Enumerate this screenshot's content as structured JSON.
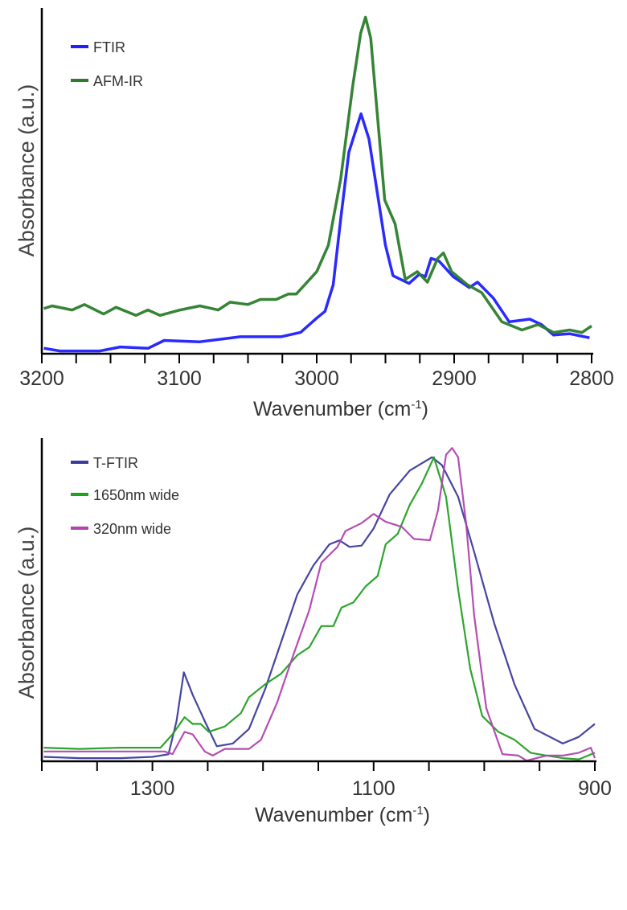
{
  "chart_data": [
    {
      "type": "line",
      "xlabel": "Wavenumber (cm-1)",
      "ylabel": "Absorbance (a.u.)",
      "xlim": [
        3200,
        2800
      ],
      "x_reversed": true,
      "ylim": [
        0,
        1
      ],
      "x_ticks": [
        3200,
        3100,
        3000,
        2900,
        2800
      ],
      "x_minor_step": 25,
      "y_ticks": [],
      "grid": false,
      "legend": "top-left",
      "series": [
        {
          "name": "FTIR",
          "color": "#1f1fff",
          "x": [
            3198.5,
            3186.9,
            3157.7,
            3143,
            3122.6,
            3111,
            3085,
            3055.5,
            3026,
            3011.7,
            3000,
            2994,
            2988,
            2982.5,
            2976.6,
            2967.8,
            2962,
            2956,
            2950,
            2944.5,
            2932.8,
            2925.5,
            2921,
            2916.8,
            2911,
            2900.7,
            2889,
            2883,
            2871.5,
            2860,
            2845,
            2836.5,
            2827.7,
            2816,
            2801.5
          ],
          "y": [
            0.016,
            0.008,
            0.008,
            0.02,
            0.016,
            0.039,
            0.035,
            0.05,
            0.05,
            0.063,
            0.105,
            0.125,
            0.203,
            0.398,
            0.594,
            0.707,
            0.633,
            0.477,
            0.32,
            0.23,
            0.207,
            0.234,
            0.227,
            0.281,
            0.273,
            0.227,
            0.195,
            0.211,
            0.164,
            0.094,
            0.102,
            0.086,
            0.055,
            0.059,
            0.047
          ]
        },
        {
          "name": "AFM-IR",
          "color": "#2b7d2b",
          "x": [
            3198.5,
            3192.6,
            3178,
            3169,
            3155,
            3146,
            3131.6,
            3122.8,
            3114,
            3099.4,
            3085,
            3071.7,
            3063,
            3050,
            3041,
            3029.5,
            3020.6,
            3014.8,
            3000,
            2991.5,
            2982.5,
            2973.8,
            2968,
            2964.5,
            2960.7,
            2956,
            2950.5,
            2943,
            2935.6,
            2926.8,
            2919.5,
            2912,
            2907.8,
            2901.9,
            2890.3,
            2880,
            2865.3,
            2850.7,
            2839,
            2827.7,
            2816,
            2807,
            2800
          ],
          "y": [
            0.133,
            0.141,
            0.129,
            0.145,
            0.117,
            0.137,
            0.113,
            0.129,
            0.113,
            0.129,
            0.141,
            0.129,
            0.152,
            0.145,
            0.16,
            0.16,
            0.176,
            0.176,
            0.242,
            0.32,
            0.516,
            0.789,
            0.945,
            0.992,
            0.93,
            0.711,
            0.453,
            0.383,
            0.219,
            0.242,
            0.211,
            0.281,
            0.297,
            0.242,
            0.203,
            0.18,
            0.094,
            0.07,
            0.086,
            0.0625,
            0.07,
            0.0625,
            0.082
          ]
        }
      ]
    },
    {
      "type": "line",
      "xlabel": "Wavenumber (cm-1)",
      "ylabel": "Absorbance (a.u.)",
      "xlim": [
        1400,
        900
      ],
      "x_reversed": true,
      "ylim": [
        0,
        1
      ],
      "x_ticks": [
        1300,
        1100,
        900
      ],
      "x_minor_step": 50,
      "y_ticks": [],
      "grid": false,
      "legend": "top-left",
      "series": [
        {
          "name": "T-FTIR",
          "color": "#3b3b9c",
          "x": [
            1398.2,
            1365.5,
            1329,
            1300,
            1285.5,
            1278.2,
            1271.6,
            1263.6,
            1252.7,
            1241.8,
            1227.3,
            1212.7,
            1198.2,
            1183.6,
            1169,
            1154.5,
            1140,
            1130.9,
            1121.8,
            1110.9,
            1100,
            1085.5,
            1067.3,
            1047.3,
            1038.2,
            1023.6,
            1009,
            990.9,
            972.7,
            954.5,
            929,
            914.5,
            900
          ],
          "y": [
            0.014,
            0.01,
            0.01,
            0.014,
            0.022,
            0.127,
            0.281,
            0.21,
            0.127,
            0.0475,
            0.056,
            0.102,
            0.227,
            0.377,
            0.527,
            0.618,
            0.685,
            0.6975,
            0.677,
            0.681,
            0.735,
            0.843,
            0.918,
            0.96,
            0.935,
            0.835,
            0.66,
            0.435,
            0.243,
            0.102,
            0.056,
            0.077,
            0.118
          ]
        },
        {
          "name": "1650nm wide",
          "color": "#22a022",
          "x": [
            1398.2,
            1365.5,
            1329,
            1292.7,
            1281.8,
            1270.9,
            1263.6,
            1256.4,
            1249.1,
            1234.5,
            1220,
            1212.7,
            1198.2,
            1183.6,
            1169,
            1158.2,
            1147.3,
            1136.4,
            1129.1,
            1118.2,
            1107.3,
            1096.4,
            1089.1,
            1078.2,
            1067.3,
            1056.4,
            1045.5,
            1034.5,
            1023.6,
            1012.7,
            1001.8,
            987.3,
            972.7,
            958.2,
            943.6,
            929,
            914.5,
            900
          ],
          "y": [
            0.043,
            0.039,
            0.043,
            0.043,
            0.085,
            0.139,
            0.118,
            0.118,
            0.093,
            0.11,
            0.152,
            0.202,
            0.243,
            0.277,
            0.335,
            0.36,
            0.427,
            0.427,
            0.485,
            0.502,
            0.552,
            0.585,
            0.685,
            0.718,
            0.81,
            0.877,
            0.96,
            0.835,
            0.543,
            0.293,
            0.143,
            0.093,
            0.068,
            0.027,
            0.018,
            0.01,
            0.006,
            0.027
          ]
        },
        {
          "name": "320nm wide",
          "color": "#b045b0",
          "x": [
            1398.2,
            1365.5,
            1329,
            1289.1,
            1281.8,
            1270.9,
            1263.6,
            1252.7,
            1245.5,
            1234.5,
            1212.7,
            1201.8,
            1187.3,
            1172.7,
            1158.2,
            1147.3,
            1140,
            1132.7,
            1125.5,
            1110.9,
            1100,
            1089.1,
            1074.5,
            1063.6,
            1049.1,
            1041.8,
            1034.5,
            1029,
            1023.6,
            1016.4,
            1009.1,
            998.2,
            983.6,
            969.1,
            961.8,
            943.6,
            929,
            914.5,
            903.6,
            900
          ],
          "y": [
            0.031,
            0.031,
            0.031,
            0.031,
            0.0225,
            0.093,
            0.085,
            0.031,
            0.018,
            0.039,
            0.039,
            0.068,
            0.185,
            0.335,
            0.477,
            0.627,
            0.652,
            0.677,
            0.727,
            0.752,
            0.781,
            0.756,
            0.74,
            0.702,
            0.698,
            0.793,
            0.968,
            0.989,
            0.96,
            0.752,
            0.46,
            0.168,
            0.0225,
            0.018,
            0.002,
            0.018,
            0.018,
            0.027,
            0.043,
            0.01
          ]
        }
      ]
    }
  ]
}
